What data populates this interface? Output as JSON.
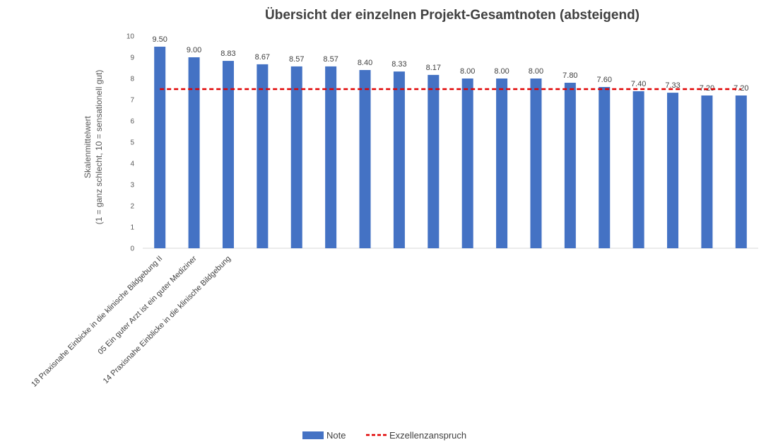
{
  "colors": {
    "bar": "#4472C4",
    "threshold": "#E00000",
    "axis": "#D9D9D9",
    "text": "#404040"
  },
  "chart_data": {
    "type": "bar",
    "title": "Übersicht der einzelnen Projekt-Gesamtnoten (absteigend)",
    "ylabel_line1": "Skalenmittelwert",
    "ylabel_line2": "(1 = ganz schlecht, 10 = sensationell gut)",
    "ylim": [
      0,
      10
    ],
    "yticks": [
      0,
      1,
      2,
      3,
      4,
      5,
      6,
      7,
      8,
      9,
      10
    ],
    "grid": false,
    "categories": [
      "18 Praxisnahe Einbicke in die klinische Bildgebung II",
      "05 Ein guter Arzt ist ein guter Mediziner",
      "14 Praxisnahe Einblicke in die klinische Bildgebung",
      "",
      "",
      "",
      "",
      "",
      "",
      "",
      "",
      "",
      "",
      "",
      "",
      "",
      "",
      ""
    ],
    "series": [
      {
        "name": "Note",
        "values": [
          9.5,
          9.0,
          8.83,
          8.67,
          8.57,
          8.57,
          8.4,
          8.33,
          8.17,
          8.0,
          8.0,
          8.0,
          7.8,
          7.6,
          7.4,
          7.33,
          7.2,
          7.2
        ],
        "value_labels": [
          "9.50",
          "9.00",
          "8.83",
          "8.67",
          "8.57",
          "8.57",
          "8.40",
          "8.33",
          "8.17",
          "8.00",
          "8.00",
          "8.00",
          "7.80",
          "7.60",
          "7.40",
          "7.33",
          "7.20",
          "7.20"
        ]
      }
    ],
    "reference_line": {
      "name": "Exzellenzanspruch",
      "value": 7.5,
      "style": "dashed"
    },
    "legend": {
      "position": "bottom",
      "entries": [
        "Note",
        "Exzellenzanspruch"
      ]
    }
  }
}
